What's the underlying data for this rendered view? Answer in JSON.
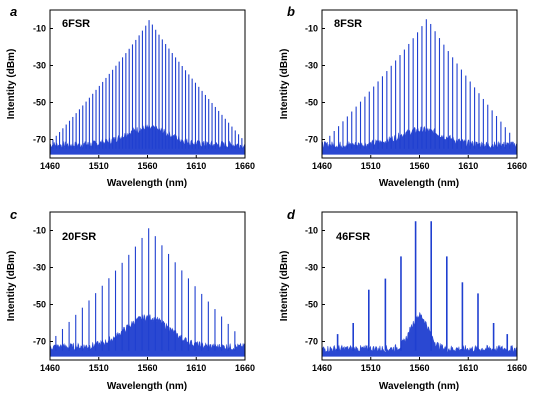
{
  "figure": {
    "background": "#ffffff",
    "line_color": "#1f3fd0"
  },
  "chart_data": [
    {
      "type": "line",
      "panel_label": "a",
      "title": "6FSR",
      "xlabel": "Wavelength (nm)",
      "ylabel": "Intentity (dBm)",
      "xlim": [
        1460,
        1660
      ],
      "ylim": [
        -80,
        0
      ],
      "xticks": [
        1460,
        1510,
        1560,
        1610,
        1660
      ],
      "yticks": [
        -10,
        -30,
        -50,
        -70
      ],
      "grid": false,
      "comb": {
        "spacing_nm": 3.4,
        "x_range": [
          1463,
          1658
        ],
        "peak_x": 1562,
        "peak_y": -5,
        "edge_y": -70,
        "noise_floor_y": -73,
        "noise_hump_center": 1560,
        "noise_hump_top_y": -64
      }
    },
    {
      "type": "line",
      "panel_label": "b",
      "title": "8FSR",
      "xlabel": "Wavelength (nm)",
      "ylabel": "Intentity (dBm)",
      "xlim": [
        1460,
        1660
      ],
      "ylim": [
        -80,
        0
      ],
      "xticks": [
        1460,
        1510,
        1560,
        1610,
        1660
      ],
      "yticks": [
        -10,
        -30,
        -50,
        -70
      ],
      "grid": false,
      "comb": {
        "spacing_nm": 4.5,
        "x_range": [
          1468,
          1655
        ],
        "peak_x": 1568,
        "peak_y": -4,
        "edge_y": -68,
        "noise_floor_y": -73,
        "noise_hump_center": 1562,
        "noise_hump_top_y": -65
      }
    },
    {
      "type": "line",
      "panel_label": "c",
      "title": "20FSR",
      "xlabel": "Wavelength (nm)",
      "ylabel": "Intentity (dBm)",
      "xlim": [
        1460,
        1660
      ],
      "ylim": [
        -80,
        0
      ],
      "xticks": [
        1460,
        1510,
        1560,
        1610,
        1660
      ],
      "yticks": [
        -10,
        -30,
        -50,
        -70
      ],
      "grid": false,
      "comb": {
        "spacing_nm": 6.8,
        "x_range": [
          1466,
          1654
        ],
        "peak_x": 1562,
        "peak_y": -8,
        "edge_y": -67,
        "noise_floor_y": -73,
        "noise_hump_center": 1560,
        "noise_hump_top_y": -57
      }
    },
    {
      "type": "line",
      "panel_label": "d",
      "title": "46FSR",
      "xlabel": "Wavelength (nm)",
      "ylabel": "Intentity (dBm)",
      "xlim": [
        1460,
        1660
      ],
      "ylim": [
        -80,
        0
      ],
      "xticks": [
        1460,
        1510,
        1560,
        1610,
        1660
      ],
      "yticks": [
        -10,
        -30,
        -50,
        -70
      ],
      "grid": false,
      "comb": {
        "lines": [
          {
            "x": 1476,
            "y": -66
          },
          {
            "x": 1492,
            "y": -60
          },
          {
            "x": 1508,
            "y": -42
          },
          {
            "x": 1525,
            "y": -36
          },
          {
            "x": 1541,
            "y": -24
          },
          {
            "x": 1556,
            "y": -5
          },
          {
            "x": 1572,
            "y": -5
          },
          {
            "x": 1588,
            "y": -24
          },
          {
            "x": 1604,
            "y": -38
          },
          {
            "x": 1620,
            "y": -44
          },
          {
            "x": 1636,
            "y": -60
          },
          {
            "x": 1650,
            "y": -66
          }
        ],
        "noise_floor_y": -74,
        "noise_hump_center": 1560,
        "noise_hump_top_y": -56,
        "noise_hump_width_nm": 18
      }
    }
  ]
}
